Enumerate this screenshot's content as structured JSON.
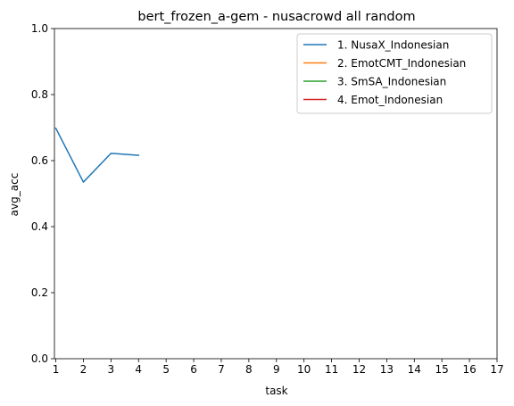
{
  "chart_data": {
    "type": "line",
    "title": "bert_frozen_a-gem - nusacrowd all random",
    "xlabel": "task",
    "ylabel": "avg_acc",
    "xlim": [
      0.95,
      17.0
    ],
    "ylim": [
      0.0,
      1.0
    ],
    "xticks": [
      "1",
      "2",
      "3",
      "4",
      "5",
      "6",
      "7",
      "8",
      "9",
      "10",
      "11",
      "12",
      "13",
      "14",
      "15",
      "16",
      "17"
    ],
    "yticks": [
      "0.0",
      "0.2",
      "0.4",
      "0.6",
      "0.8",
      "1.0"
    ],
    "grid": false,
    "legend_position": "top-right",
    "series": [
      {
        "name": "1. NusaX_Indonesian",
        "color": "#1f77b4",
        "x": [
          1,
          2,
          3,
          4
        ],
        "y": [
          0.698,
          0.535,
          0.622,
          0.616
        ]
      },
      {
        "name": "2. EmotCMT_Indonesian",
        "color": "#ff7f0e",
        "x": [],
        "y": []
      },
      {
        "name": "3. SmSA_Indonesian",
        "color": "#2ca02c",
        "x": [],
        "y": []
      },
      {
        "name": "4. Emot_Indonesian",
        "color": "#d62728",
        "x": [],
        "y": []
      }
    ]
  }
}
